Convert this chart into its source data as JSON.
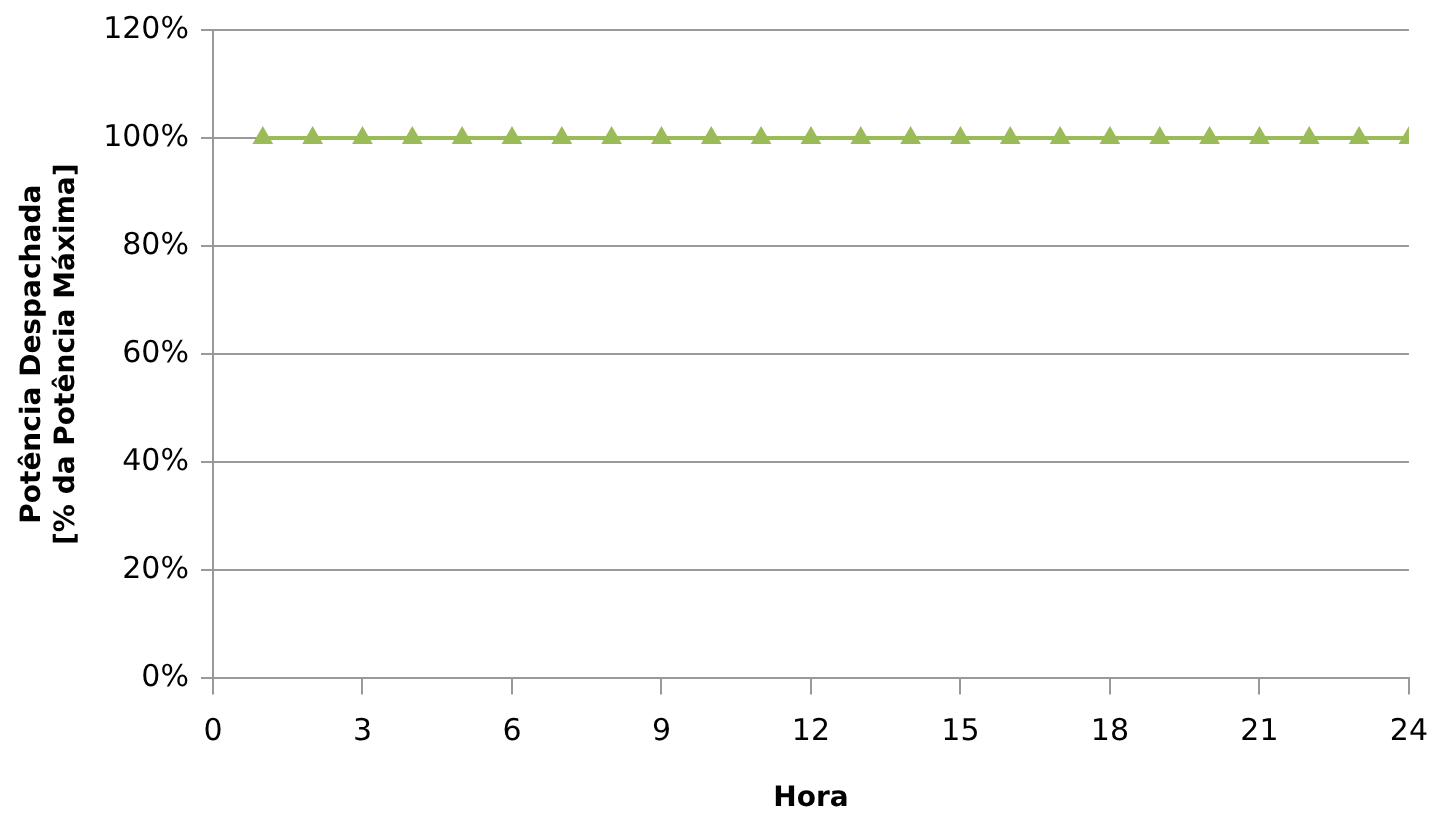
{
  "chart_data": {
    "type": "line",
    "xlabel": "Hora",
    "ylabel": "Potência Despachada\n[% da Potência Máxima]",
    "x": [
      1,
      2,
      3,
      4,
      5,
      6,
      7,
      8,
      9,
      10,
      11,
      12,
      13,
      14,
      15,
      16,
      17,
      18,
      19,
      20,
      21,
      22,
      23,
      24
    ],
    "series": [
      {
        "color": "#9bbb59",
        "values": [
          100,
          100,
          100,
          100,
          100,
          100,
          100,
          100,
          100,
          100,
          100,
          100,
          100,
          100,
          100,
          100,
          100,
          100,
          100,
          100,
          100,
          100,
          100,
          100
        ]
      }
    ],
    "xlim": [
      0,
      24
    ],
    "xticks": [
      0,
      3,
      6,
      9,
      12,
      15,
      18,
      21,
      24
    ],
    "ylim": [
      0,
      120
    ],
    "yticks": [
      {
        "value": 0,
        "label": "0%"
      },
      {
        "value": 20,
        "label": "20%"
      },
      {
        "value": 40,
        "label": "40%"
      },
      {
        "value": 60,
        "label": "60%"
      },
      {
        "value": 80,
        "label": "80%"
      },
      {
        "value": 100,
        "label": "100%"
      },
      {
        "value": 120,
        "label": "120%"
      }
    ],
    "grid": "y",
    "marker": "triangle",
    "line_style": "solid"
  }
}
